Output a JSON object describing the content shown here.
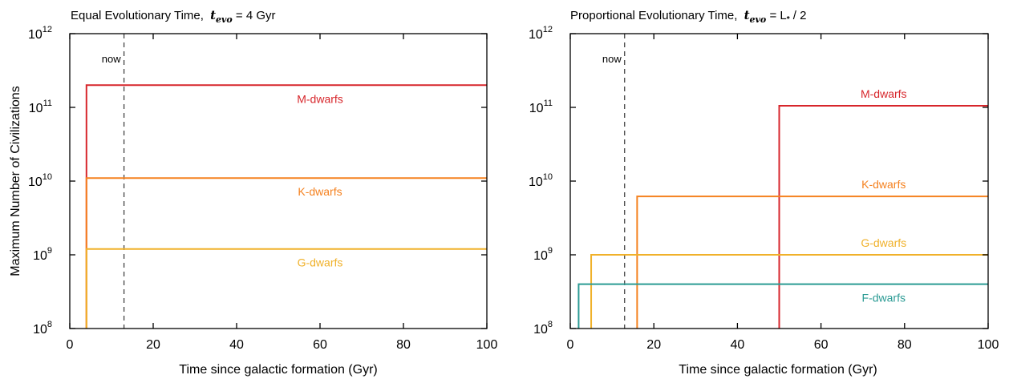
{
  "chart_data": [
    {
      "type": "line",
      "title": "Equal Evolutionary Time,",
      "title_math": "t",
      "title_math_sub": "evo",
      "title_rest": " = 4 Gyr",
      "xlabel": "Time since galactic formation (Gyr)",
      "ylabel": "Maximum Number of Civilizations",
      "xlim": [
        0,
        100
      ],
      "ylim": [
        100000000,
        1000000000000
      ],
      "yscale": "log",
      "grid": false,
      "xticks": [
        0,
        20,
        40,
        60,
        80,
        100
      ],
      "yticks": [
        {
          "base": "10",
          "exp": "8",
          "value": 100000000
        },
        {
          "base": "10",
          "exp": "9",
          "value": 1000000000
        },
        {
          "base": "10",
          "exp": "10",
          "value": 10000000000
        },
        {
          "base": "10",
          "exp": "11",
          "value": 100000000000
        },
        {
          "base": "10",
          "exp": "12",
          "value": 1000000000000
        }
      ],
      "now_marker": {
        "x": 13,
        "label": "now"
      },
      "series": [
        {
          "name": "M-dwarfs",
          "color": "#d7262b",
          "start": 4,
          "value": 200000000000,
          "label_x": 60
        },
        {
          "name": "K-dwarfs",
          "color": "#f58220",
          "start": 4,
          "value": 11000000000,
          "label_x": 60
        },
        {
          "name": "G-dwarfs",
          "color": "#f0b12a",
          "start": 4,
          "value": 1200000000,
          "label_x": 60
        }
      ]
    },
    {
      "type": "line",
      "title": "Proportional Evolutionary Time,",
      "title_math": "t",
      "title_math_sub": "evo",
      "title_rest": " = L",
      "title_rest2": " / 2",
      "xlabel": "Time since galactic formation (Gyr)",
      "ylabel": "",
      "xlim": [
        0,
        100
      ],
      "ylim": [
        100000000,
        1000000000000
      ],
      "yscale": "log",
      "grid": false,
      "xticks": [
        0,
        20,
        40,
        60,
        80,
        100
      ],
      "yticks": [
        {
          "base": "10",
          "exp": "8",
          "value": 100000000
        },
        {
          "base": "10",
          "exp": "9",
          "value": 1000000000
        },
        {
          "base": "10",
          "exp": "10",
          "value": 10000000000
        },
        {
          "base": "10",
          "exp": "11",
          "value": 100000000000
        },
        {
          "base": "10",
          "exp": "12",
          "value": 1000000000000
        }
      ],
      "now_marker": {
        "x": 13,
        "label": "now"
      },
      "series": [
        {
          "name": "M-dwarfs",
          "color": "#d7262b",
          "start": 50,
          "value": 105000000000,
          "label_x": 75,
          "label_above": true
        },
        {
          "name": "K-dwarfs",
          "color": "#f58220",
          "start": 16,
          "value": 6200000000,
          "label_x": 75,
          "label_above": true
        },
        {
          "name": "G-dwarfs",
          "color": "#f0b12a",
          "start": 5,
          "value": 1000000000,
          "label_x": 75,
          "label_above": true
        },
        {
          "name": "F-dwarfs",
          "color": "#2b9b94",
          "start": 2,
          "value": 400000000,
          "label_x": 75,
          "label_above": false
        }
      ]
    }
  ]
}
